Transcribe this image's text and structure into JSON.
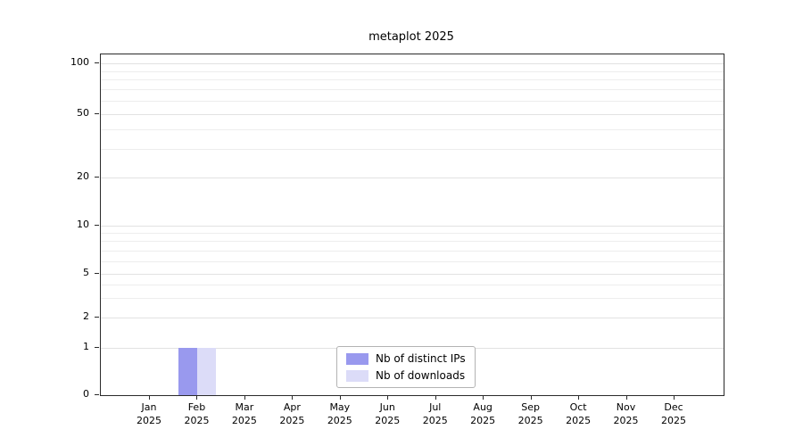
{
  "chart_data": {
    "type": "bar",
    "title": "metaplot 2025",
    "categories": [
      {
        "month": "Jan",
        "year": "2025"
      },
      {
        "month": "Feb",
        "year": "2025"
      },
      {
        "month": "Mar",
        "year": "2025"
      },
      {
        "month": "Apr",
        "year": "2025"
      },
      {
        "month": "May",
        "year": "2025"
      },
      {
        "month": "Jun",
        "year": "2025"
      },
      {
        "month": "Jul",
        "year": "2025"
      },
      {
        "month": "Aug",
        "year": "2025"
      },
      {
        "month": "Sep",
        "year": "2025"
      },
      {
        "month": "Oct",
        "year": "2025"
      },
      {
        "month": "Nov",
        "year": "2025"
      },
      {
        "month": "Dec",
        "year": "2025"
      }
    ],
    "series": [
      {
        "name": "Nb of distinct IPs",
        "color": "#9999ee",
        "values": [
          0,
          1,
          0,
          0,
          0,
          0,
          0,
          0,
          0,
          0,
          0,
          0
        ]
      },
      {
        "name": "Nb of downloads",
        "color": "#dcdcf8",
        "values": [
          0,
          1,
          0,
          0,
          0,
          0,
          0,
          0,
          0,
          0,
          0,
          0
        ]
      }
    ],
    "yticks": [
      0,
      1,
      2,
      5,
      10,
      20,
      50,
      100
    ],
    "minor_ticks": [
      3,
      4,
      6,
      7,
      8,
      9,
      30,
      40,
      60,
      70,
      80,
      90
    ],
    "scale": "symlog",
    "ylim": [
      0,
      115
    ],
    "grid": "horizontal",
    "legend_position": "lower center",
    "y_calibration": [
      [
        0,
        1.0
      ],
      [
        1,
        0.861
      ],
      [
        2,
        0.772
      ],
      [
        5,
        0.644
      ],
      [
        10,
        0.503
      ],
      [
        20,
        0.361
      ],
      [
        50,
        0.175
      ],
      [
        100,
        0.026
      ]
    ]
  }
}
